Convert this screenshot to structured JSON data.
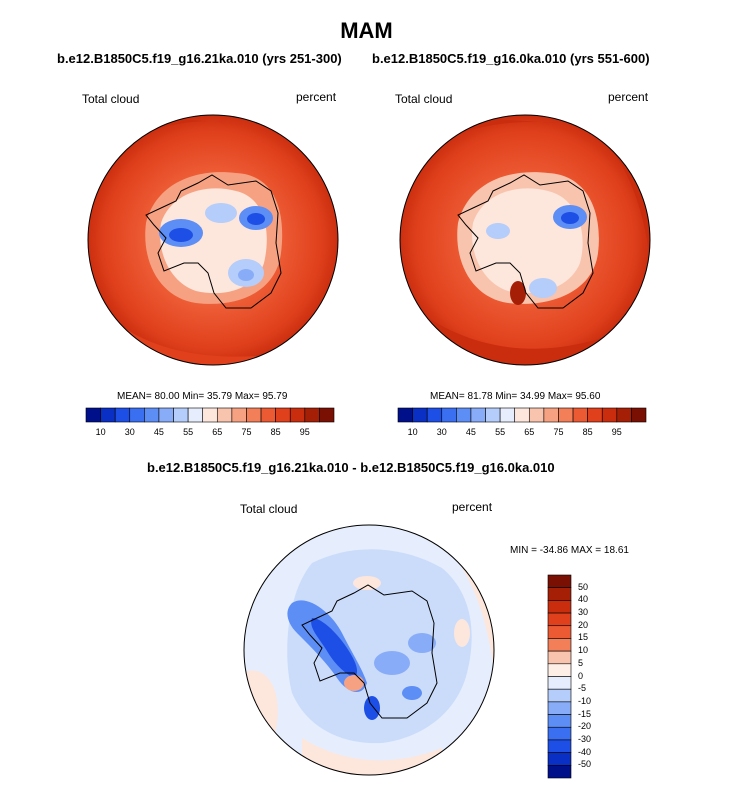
{
  "title": "MAM",
  "left_panel": {
    "subtitle": "b.e12.B1850C5.f19_g16.21ka.010 (yrs 251-300)",
    "left_label": "Total cloud",
    "right_label": "percent",
    "stats": "MEAN=  80.00  Min=  35.79  Max=  95.79"
  },
  "right_panel": {
    "subtitle": "b.e12.B1850C5.f19_g16.0ka.010 (yrs 551-600)",
    "left_label": "Total cloud",
    "right_label": "percent",
    "stats": "MEAN=  81.78  Min=  34.99  Max=  95.60"
  },
  "diff_panel": {
    "subtitle": "b.e12.B1850C5.f19_g16.21ka.010 - b.e12.B1850C5.f19_g16.0ka.010",
    "left_label": "Total cloud",
    "right_label": "percent",
    "stats": "MIN = -34.86 MAX =  18.61"
  },
  "colorbar_top": {
    "colors": [
      "#00108a",
      "#0a2fc4",
      "#1d4fe6",
      "#3a6ff2",
      "#5d8ef5",
      "#88acf7",
      "#b4cdfa",
      "#e6eefd",
      "#fde6dc",
      "#f9c4ad",
      "#f6a282",
      "#f27f58",
      "#ec5a33",
      "#e0401c",
      "#c92d0e",
      "#a51f06",
      "#7a1003"
    ],
    "ticks": [
      "10",
      "30",
      "45",
      "55",
      "65",
      "75",
      "85",
      "95"
    ]
  },
  "colorbar_diff": {
    "colors": [
      "#7a1003",
      "#a51f06",
      "#c92d0e",
      "#e0401c",
      "#ec5a33",
      "#f27f58",
      "#f9c4ad",
      "#fdeee6",
      "#e6eefd",
      "#b4cdfa",
      "#88acf7",
      "#5d8ef5",
      "#3a6ff2",
      "#1d4fe6",
      "#0a2fc4",
      "#00108a"
    ],
    "ticks": [
      "50",
      "40",
      "30",
      "20",
      "15",
      "10",
      "5",
      "0",
      "-5",
      "-10",
      "-15",
      "-20",
      "-30",
      "-40",
      "-50"
    ]
  }
}
